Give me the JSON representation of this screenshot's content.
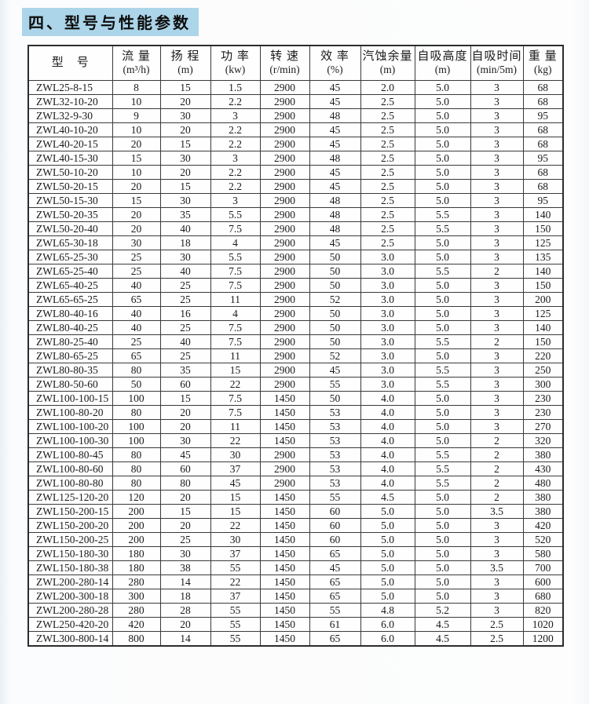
{
  "title": "四、型号与性能参数",
  "colors": {
    "title_highlight": "#acd5e9",
    "table_border": "#3a3a3a",
    "text": "#1a1a1a"
  },
  "table": {
    "columns": [
      {
        "label": "型　号",
        "unit": ""
      },
      {
        "label": "流 量",
        "unit": "(m³/h)"
      },
      {
        "label": "扬 程",
        "unit": "(m)"
      },
      {
        "label": "功 率",
        "unit": "(kw)"
      },
      {
        "label": "转 速",
        "unit": "(r/min)"
      },
      {
        "label": "效 率",
        "unit": "(%)"
      },
      {
        "label": "汽蚀余量",
        "unit": "(m)"
      },
      {
        "label": "自吸高度",
        "unit": "(m)"
      },
      {
        "label": "自吸时间",
        "unit": "(min/5m)"
      },
      {
        "label": "重 量",
        "unit": "(kg)"
      }
    ],
    "rows": [
      [
        "ZWL25-8-15",
        "8",
        "15",
        "1.5",
        "2900",
        "45",
        "2.0",
        "5.0",
        "3",
        "68"
      ],
      [
        "ZWL32-10-20",
        "10",
        "20",
        "2.2",
        "2900",
        "45",
        "2.5",
        "5.0",
        "3",
        "68"
      ],
      [
        "ZWL32-9-30",
        "9",
        "30",
        "3",
        "2900",
        "48",
        "2.5",
        "5.0",
        "3",
        "95"
      ],
      [
        "ZWL40-10-20",
        "10",
        "20",
        "2.2",
        "2900",
        "45",
        "2.5",
        "5.0",
        "3",
        "68"
      ],
      [
        "ZWL40-20-15",
        "20",
        "15",
        "2.2",
        "2900",
        "45",
        "2.5",
        "5.0",
        "3",
        "68"
      ],
      [
        "ZWL40-15-30",
        "15",
        "30",
        "3",
        "2900",
        "48",
        "2.5",
        "5.0",
        "3",
        "95"
      ],
      [
        "ZWL50-10-20",
        "10",
        "20",
        "2.2",
        "2900",
        "45",
        "2.5",
        "5.0",
        "3",
        "68"
      ],
      [
        "ZWL50-20-15",
        "20",
        "15",
        "2.2",
        "2900",
        "45",
        "2.5",
        "5.0",
        "3",
        "68"
      ],
      [
        "ZWL50-15-30",
        "15",
        "30",
        "3",
        "2900",
        "48",
        "2.5",
        "5.0",
        "3",
        "95"
      ],
      [
        "ZWL50-20-35",
        "20",
        "35",
        "5.5",
        "2900",
        "48",
        "2.5",
        "5.5",
        "3",
        "140"
      ],
      [
        "ZWL50-20-40",
        "20",
        "40",
        "7.5",
        "2900",
        "48",
        "2.5",
        "5.5",
        "3",
        "150"
      ],
      [
        "ZWL65-30-18",
        "30",
        "18",
        "4",
        "2900",
        "45",
        "2.5",
        "5.0",
        "3",
        "125"
      ],
      [
        "ZWL65-25-30",
        "25",
        "30",
        "5.5",
        "2900",
        "50",
        "3.0",
        "5.0",
        "3",
        "135"
      ],
      [
        "ZWL65-25-40",
        "25",
        "40",
        "7.5",
        "2900",
        "50",
        "3.0",
        "5.5",
        "2",
        "140"
      ],
      [
        "ZWL65-40-25",
        "40",
        "25",
        "7.5",
        "2900",
        "50",
        "3.0",
        "5.0",
        "3",
        "150"
      ],
      [
        "ZWL65-65-25",
        "65",
        "25",
        "11",
        "2900",
        "52",
        "3.0",
        "5.0",
        "3",
        "200"
      ],
      [
        "ZWL80-40-16",
        "40",
        "16",
        "4",
        "2900",
        "50",
        "3.0",
        "5.0",
        "3",
        "125"
      ],
      [
        "ZWL80-40-25",
        "40",
        "25",
        "7.5",
        "2900",
        "50",
        "3.0",
        "5.0",
        "3",
        "140"
      ],
      [
        "ZWL80-25-40",
        "25",
        "40",
        "7.5",
        "2900",
        "50",
        "3.0",
        "5.5",
        "2",
        "150"
      ],
      [
        "ZWL80-65-25",
        "65",
        "25",
        "11",
        "2900",
        "52",
        "3.0",
        "5.0",
        "3",
        "220"
      ],
      [
        "ZWL80-80-35",
        "80",
        "35",
        "15",
        "2900",
        "45",
        "3.0",
        "5.5",
        "3",
        "250"
      ],
      [
        "ZWL80-50-60",
        "50",
        "60",
        "22",
        "2900",
        "55",
        "3.0",
        "5.5",
        "3",
        "300"
      ],
      [
        "ZWL100-100-15",
        "100",
        "15",
        "7.5",
        "1450",
        "50",
        "4.0",
        "5.0",
        "3",
        "230"
      ],
      [
        "ZWL100-80-20",
        "80",
        "20",
        "7.5",
        "1450",
        "53",
        "4.0",
        "5.0",
        "3",
        "230"
      ],
      [
        "ZWL100-100-20",
        "100",
        "20",
        "11",
        "1450",
        "53",
        "4.0",
        "5.0",
        "3",
        "270"
      ],
      [
        "ZWL100-100-30",
        "100",
        "30",
        "22",
        "1450",
        "53",
        "4.0",
        "5.0",
        "2",
        "320"
      ],
      [
        "ZWL100-80-45",
        "80",
        "45",
        "30",
        "2900",
        "53",
        "4.0",
        "5.5",
        "2",
        "380"
      ],
      [
        "ZWL100-80-60",
        "80",
        "60",
        "37",
        "2900",
        "53",
        "4.0",
        "5.5",
        "2",
        "430"
      ],
      [
        "ZWL100-80-80",
        "80",
        "80",
        "45",
        "2900",
        "53",
        "4.0",
        "5.5",
        "2",
        "480"
      ],
      [
        "ZWL125-120-20",
        "120",
        "20",
        "15",
        "1450",
        "55",
        "4.5",
        "5.0",
        "2",
        "380"
      ],
      [
        "ZWL150-200-15",
        "200",
        "15",
        "15",
        "1450",
        "60",
        "5.0",
        "5.0",
        "3.5",
        "380"
      ],
      [
        "ZWL150-200-20",
        "200",
        "20",
        "22",
        "1450",
        "60",
        "5.0",
        "5.0",
        "3",
        "420"
      ],
      [
        "ZWL150-200-25",
        "200",
        "25",
        "30",
        "1450",
        "60",
        "5.0",
        "5.0",
        "3",
        "520"
      ],
      [
        "ZWL150-180-30",
        "180",
        "30",
        "37",
        "1450",
        "65",
        "5.0",
        "5.0",
        "3",
        "580"
      ],
      [
        "ZWL150-180-38",
        "180",
        "38",
        "55",
        "1450",
        "45",
        "5.0",
        "5.0",
        "3.5",
        "700"
      ],
      [
        "ZWL200-280-14",
        "280",
        "14",
        "22",
        "1450",
        "65",
        "5.0",
        "5.0",
        "3",
        "600"
      ],
      [
        "ZWL200-300-18",
        "300",
        "18",
        "37",
        "1450",
        "65",
        "5.0",
        "5.0",
        "3",
        "680"
      ],
      [
        "ZWL200-280-28",
        "280",
        "28",
        "55",
        "1450",
        "55",
        "4.8",
        "5.2",
        "3",
        "820"
      ],
      [
        "ZWL250-420-20",
        "420",
        "20",
        "55",
        "1450",
        "61",
        "6.0",
        "4.5",
        "2.5",
        "1020"
      ],
      [
        "ZWL300-800-14",
        "800",
        "14",
        "55",
        "1450",
        "65",
        "6.0",
        "4.5",
        "2.5",
        "1200"
      ]
    ]
  }
}
